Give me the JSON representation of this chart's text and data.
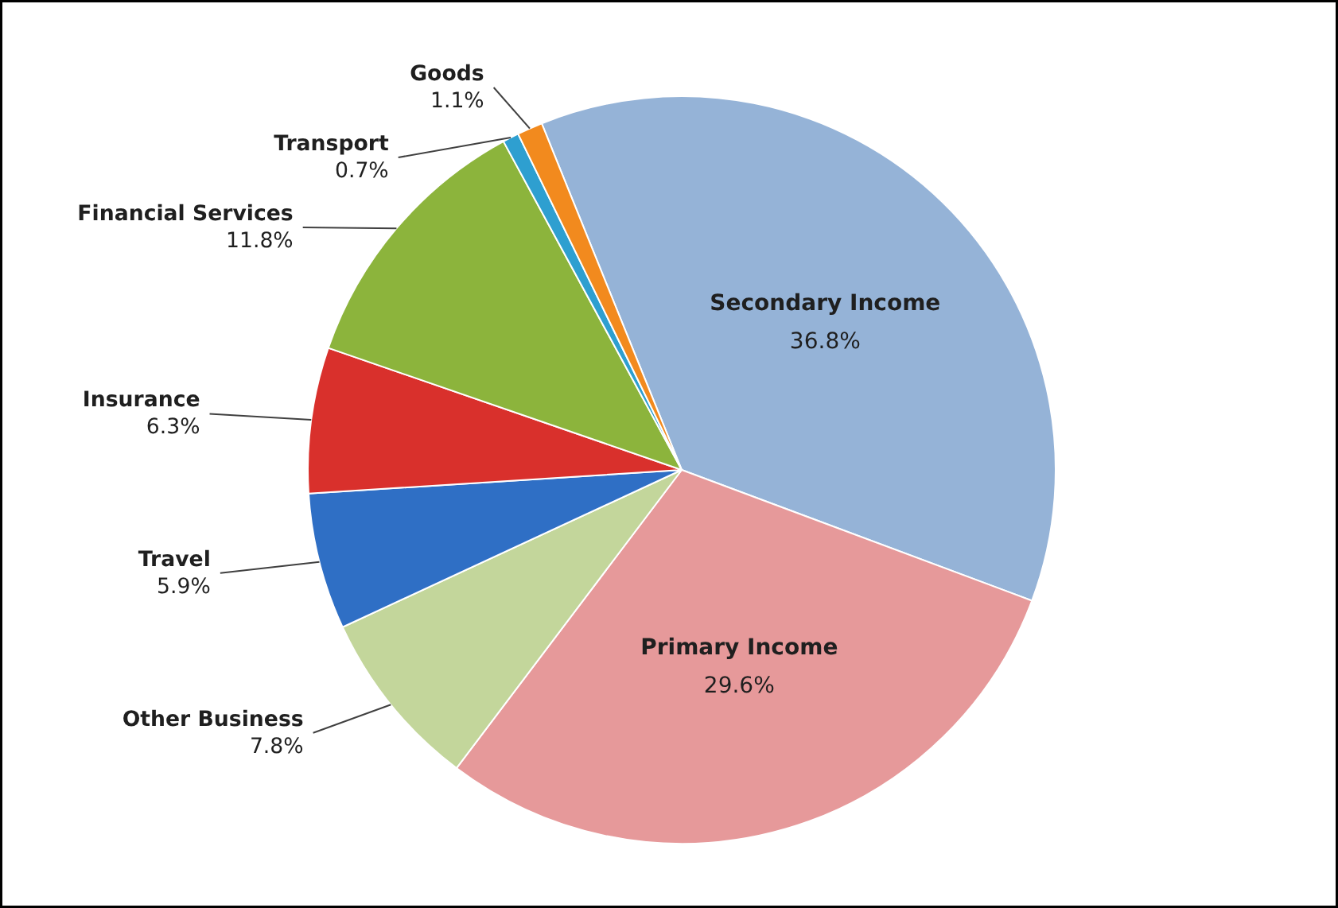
{
  "chart_data": {
    "type": "pie",
    "categories": [
      "Secondary Income",
      "Primary Income",
      "Other Business",
      "Travel",
      "Insurance",
      "Financial Services",
      "Transport",
      "Goods"
    ],
    "values": [
      36.8,
      29.6,
      7.8,
      5.9,
      6.3,
      11.8,
      0.7,
      1.1
    ],
    "value_labels": [
      "36.8%",
      "29.6%",
      "7.8%",
      "5.9%",
      "6.3%",
      "11.8%",
      "0.7%",
      "1.1%"
    ],
    "colors": [
      "#95b3d7",
      "#e6999a",
      "#c3d69b",
      "#2f6fc5",
      "#d9302c",
      "#8cb43c",
      "#2e9fd0",
      "#f28a1e"
    ]
  }
}
